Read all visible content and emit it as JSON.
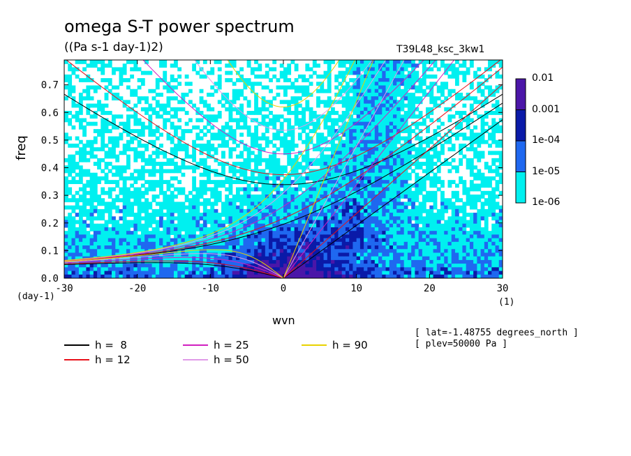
{
  "chart_data": {
    "type": "heatmap",
    "title": "omega S-T power spectrum",
    "subtitle": "((Pa s-1 day-1)2)",
    "run_name": "T39L48_ksc_3kw1",
    "xlabel": "wvn",
    "ylabel": "freq",
    "x_unit_left": "(day-1)",
    "x_unit_right": "(1)",
    "xlim": [
      -30,
      30
    ],
    "ylim": [
      0,
      0.79
    ],
    "xticks": [
      "-30",
      "-20",
      "-10",
      "0",
      "10",
      "20",
      "30"
    ],
    "yticks": [
      "0.0",
      "0.1",
      "0.2",
      "0.3",
      "0.4",
      "0.5",
      "0.6",
      "0.7"
    ],
    "colorbar": {
      "levels": [
        "0.01",
        "0.001",
        "1e-04",
        "1e-05",
        "1e-06"
      ],
      "colors": [
        "#4b16a8",
        "#0a1aa8",
        "#1f68f0",
        "#00f0f0",
        "#ffffff"
      ]
    },
    "annotations": [
      "[ lat=-1.48755 degrees_north ]",
      "[ plev=50000 Pa ]"
    ],
    "dispersion_curves": [
      {
        "label": "h =  8",
        "h": 8,
        "color": "#000000"
      },
      {
        "label": "h = 12",
        "h": 12,
        "color": "#e8101a"
      },
      {
        "label": "h = 25",
        "h": 25,
        "color": "#d11fc0"
      },
      {
        "label": "h = 50",
        "h": 50,
        "color": "#e09ae8"
      },
      {
        "label": "h = 90",
        "h": 90,
        "color": "#e8d200"
      }
    ]
  }
}
